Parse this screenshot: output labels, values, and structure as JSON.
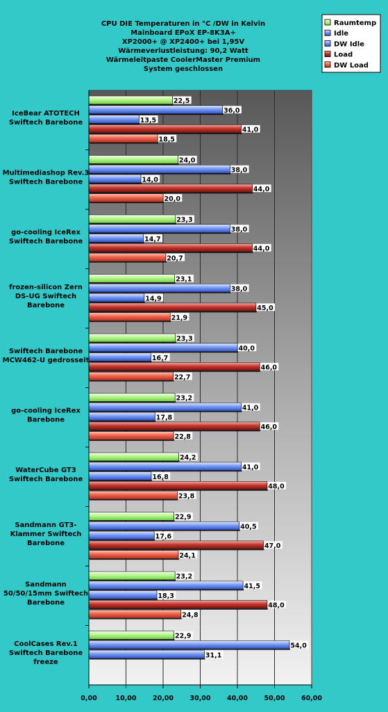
{
  "chart_data": {
    "type": "bar",
    "orientation": "horizontal",
    "title": [
      "CPU DIE Temperaturen in °C /DW in Kelvin",
      "Mainboard EPoX EP-8K3A+",
      "XP2000+ @ XP2400+ bei 1,95V",
      "Wärmeverlustleistung: 90,2 Watt",
      "Wärmeleitpaste CoolerMaster Premium",
      "System geschlossen"
    ],
    "categories": [
      [
        "IceBear ATOTECH",
        "Swiftech Barebone"
      ],
      [
        "Multimediashop Rev.3",
        "Swiftech Barebone"
      ],
      [
        "go-cooling IceRex",
        "Swiftech Barebone"
      ],
      [
        "frozen-silicon Zern",
        "DS-UG Swiftech",
        "Barebone"
      ],
      [
        "Swiftech Barebone",
        "MCW462-U gedrosselt"
      ],
      [
        "go-cooling IceRex",
        "Barebone"
      ],
      [
        "WaterCube GT3",
        "Swiftech Barebone"
      ],
      [
        "Sandmann GT3-",
        "Klammer Swiftech",
        "Barebone"
      ],
      [
        "Sandmann",
        "50/50/15mm Swiftech",
        "Barebone"
      ],
      [
        "CoolCases Rev.1",
        "Swiftech Barebone",
        "freeze"
      ]
    ],
    "series": [
      {
        "name": "Raumtemp",
        "color": "#c6f7a0",
        "values": [
          22.5,
          24.0,
          23.3,
          23.1,
          23.3,
          23.2,
          24.2,
          22.9,
          23.2,
          22.9
        ],
        "labels": [
          "22,5",
          "24,0",
          "23,3",
          "23,1",
          "23,3",
          "23,2",
          "24,2",
          "22,9",
          "23,2",
          "22,9"
        ]
      },
      {
        "name": "Idle",
        "color": "#6b8ff0",
        "values": [
          36.0,
          38.0,
          38.0,
          38.0,
          40.0,
          41.0,
          41.0,
          40.5,
          41.5,
          54.0
        ],
        "labels": [
          "36,0",
          "38,0",
          "38,0",
          "38,0",
          "40,0",
          "41,0",
          "41,0",
          "40,5",
          "41,5",
          "54,0"
        ]
      },
      {
        "name": "DW Idle",
        "color": "#6b8ff0",
        "values": [
          13.5,
          14.0,
          14.7,
          14.9,
          16.7,
          17.8,
          16.8,
          17.6,
          18.3,
          31.1
        ],
        "labels": [
          "13,5",
          "14,0",
          "14,7",
          "14,9",
          "16,7",
          "17,8",
          "16,8",
          "17,6",
          "18,3",
          "31,1"
        ]
      },
      {
        "name": "Load",
        "color": "#c43a36",
        "values": [
          41.0,
          44.0,
          44.0,
          45.0,
          46.0,
          46.0,
          48.0,
          47.0,
          48.0,
          null
        ],
        "labels": [
          "41,0",
          "44,0",
          "44,0",
          "45,0",
          "46,0",
          "46,0",
          "48,0",
          "47,0",
          "48,0",
          ""
        ]
      },
      {
        "name": "DW Load",
        "color": "#e8604a",
        "values": [
          18.5,
          20.0,
          20.7,
          21.9,
          22.7,
          22.8,
          23.8,
          24.1,
          24.8,
          null
        ],
        "labels": [
          "18,5",
          "20,0",
          "20,7",
          "21,9",
          "22,7",
          "22,8",
          "23,8",
          "24,1",
          "24,8",
          ""
        ]
      }
    ],
    "ticks": [
      "0,00",
      "10,00",
      "20,00",
      "30,00",
      "40,00",
      "50,00",
      "60,00"
    ],
    "xlim": [
      0,
      60
    ],
    "grid": true,
    "legend_position": "top-right"
  }
}
